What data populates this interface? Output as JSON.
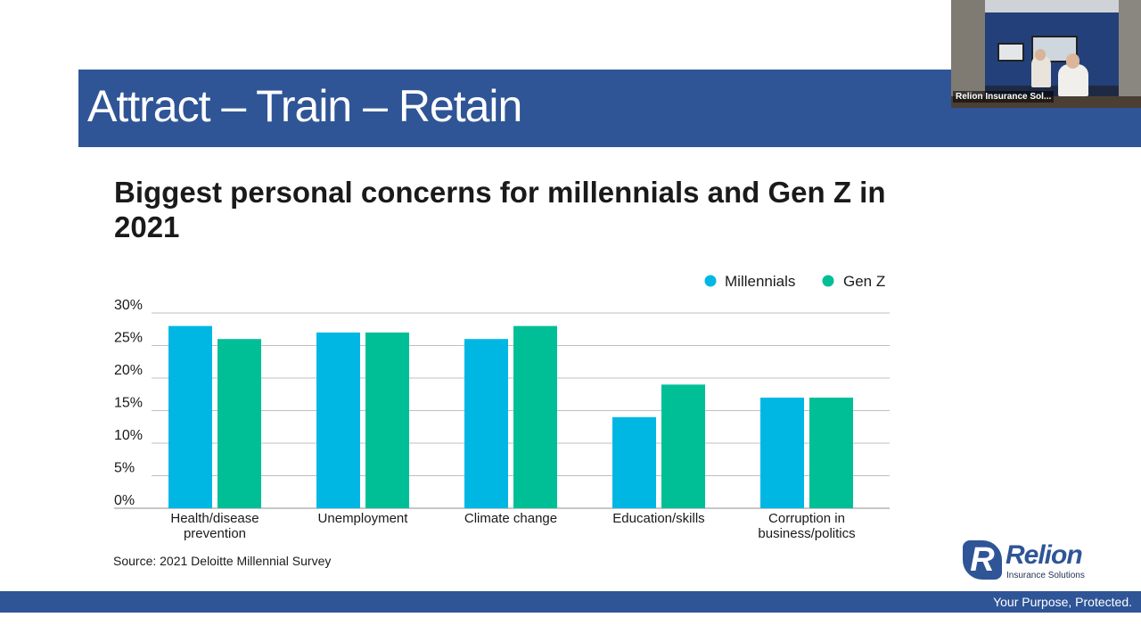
{
  "slide": {
    "title": "Attract – Train – Retain",
    "source": "Source: 2021 Deloitte Millennial Survey",
    "tagline": "Your Purpose, Protected."
  },
  "video": {
    "participant_label": "Relion Insurance Sol..."
  },
  "logo": {
    "mark": "R",
    "name": "Relion",
    "subtitle": "Insurance Solutions"
  },
  "colors": {
    "title_band": "#2f5597",
    "millennials": "#00b7e4",
    "genz": "#00bf96",
    "gridline": "#bfbfbf"
  },
  "chart_data": {
    "type": "bar",
    "title": "Biggest personal concerns for millennials and Gen Z in 2021",
    "categories": [
      "Health/disease prevention",
      "Unemployment",
      "Climate change",
      "Education/skills",
      "Corruption in business/politics"
    ],
    "category_lines": [
      [
        "Health/disease",
        "prevention"
      ],
      [
        "Unemployment"
      ],
      [
        "Climate change"
      ],
      [
        "Education/skills"
      ],
      [
        "Corruption in",
        "business/politics"
      ]
    ],
    "series": [
      {
        "name": "Millennials",
        "values": [
          28,
          27,
          26,
          14,
          17
        ],
        "color": "#00b7e4"
      },
      {
        "name": "Gen Z",
        "values": [
          26,
          27,
          28,
          19,
          17
        ],
        "color": "#00bf96"
      }
    ],
    "y_ticks": [
      "0%",
      "5%",
      "10%",
      "15%",
      "20%",
      "25%",
      "30%"
    ],
    "ylim": [
      0,
      30
    ],
    "grid": true,
    "legend_position": "top-right"
  }
}
